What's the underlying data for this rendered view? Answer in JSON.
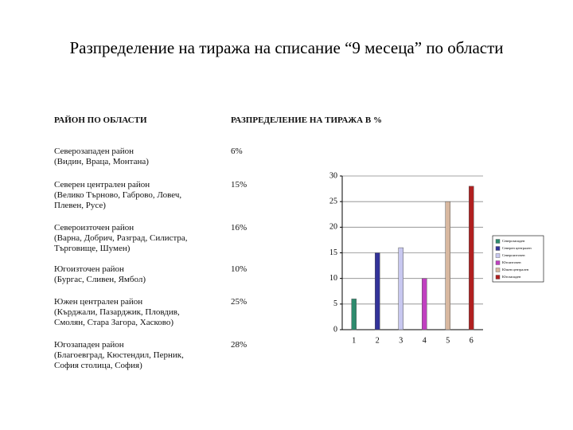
{
  "title": "Разпределение на тиража на списание “9 месеца” по области",
  "table": {
    "header": [
      "РАЙОН ПО ОБЛАСТИ",
      "РАЗПРЕДЕЛЕНИЕ НА ТИРАЖА В %"
    ],
    "rows": [
      {
        "region": "Северозападен район",
        "districts": "(Видин, Враца, Монтана)",
        "share": "6%"
      },
      {
        "region": "Северен централен район",
        "districts": "(Велико Търново, Габрово, Ловеч, Плевен, Русе)",
        "share": "15%"
      },
      {
        "region": "Североизточен район",
        "districts": "(Варна, Добрич, Разград, Силистра, Търговище, Шумен)",
        "share": "16%"
      },
      {
        "region": "Югоизточен район",
        "districts": "(Бургас, Сливен, Ямбол)",
        "share": "10%"
      },
      {
        "region": "Южен централен район",
        "districts": "(Кърджали, Пазарджик, Пловдив, Смолян, Стара Загора, Хасково)",
        "share": "25%"
      },
      {
        "region": "Югозападен район",
        "districts": "(Благоевград, Кюстендил, Перник, София столица, София)",
        "share": "28%"
      }
    ]
  },
  "chart_data": {
    "type": "bar",
    "categories": [
      "1",
      "2",
      "3",
      "4",
      "5",
      "6"
    ],
    "values": [
      6,
      15,
      16,
      10,
      25,
      28
    ],
    "colors": [
      "#2e8b6e",
      "#333399",
      "#c8c8f0",
      "#c040c0",
      "#d8b8a0",
      "#b02020"
    ],
    "legend": [
      "Северозападен",
      "Северен централен",
      "Североизточен",
      "Югоизточен",
      "Южен централен",
      "Югозападен"
    ],
    "ylim": [
      0,
      30
    ],
    "yticks": [
      0,
      5,
      10,
      15,
      20,
      25,
      30
    ],
    "grid": true
  }
}
